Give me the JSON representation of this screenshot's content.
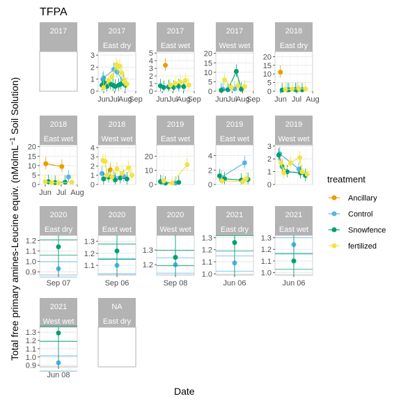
{
  "chart_data": {
    "type": "scatter",
    "title": "TFPA",
    "xlabel": "Date",
    "ylabel": "Total free primary amines-Leucine equiv. (nMol mL^-1 Soil Solution)",
    "ylabel_parts": {
      "main": "Total free primary amines-Leucine equiv. (nMolmL",
      "sup": "−1",
      "tail": " Soil Solution)"
    },
    "legend": {
      "title": "treatment",
      "position": "right",
      "entries": [
        {
          "name": "Ancillary",
          "color": "#E69F00"
        },
        {
          "name": "Control",
          "color": "#56B4E9"
        },
        {
          "name": "Snowfence",
          "color": "#009E73"
        },
        {
          "name": "fertilized",
          "color": "#F0E442"
        }
      ]
    },
    "panels": [
      {
        "year": "2017",
        "site": "",
        "empty": true
      },
      {
        "year": "2017",
        "site": "East dry",
        "ylim": [
          0,
          3.3
        ],
        "yticks": [
          0,
          1,
          2,
          3
        ],
        "xticks": [
          "Jun",
          "Jul",
          "Aug",
          "Sep"
        ],
        "series": [
          {
            "name": "Ancillary",
            "points": []
          },
          {
            "name": "Control",
            "points": [
              [
                0.08,
                1.0
              ],
              [
                0.1,
                1.1
              ],
              [
                0.4,
                1.8
              ],
              [
                0.5,
                1.6
              ],
              [
                0.7,
                0.8
              ]
            ]
          },
          {
            "name": "Snowfence",
            "points": [
              [
                0.05,
                0.5
              ],
              [
                0.12,
                0.7
              ],
              [
                0.2,
                0.4
              ],
              [
                0.3,
                0.6
              ],
              [
                0.38,
                0.5
              ],
              [
                0.45,
                0.4
              ],
              [
                0.55,
                0.5
              ],
              [
                0.62,
                0.6
              ],
              [
                0.75,
                0.5
              ]
            ]
          },
          {
            "name": "fertilized",
            "points": [
              [
                0.1,
                0.3
              ],
              [
                0.25,
                0.9
              ],
              [
                0.35,
                1.2
              ],
              [
                0.48,
                2.2
              ],
              [
                0.52,
                2.0
              ],
              [
                0.58,
                2.1
              ],
              [
                0.65,
                1.5
              ],
              [
                0.72,
                0.8
              ],
              [
                0.8,
                0.6
              ]
            ]
          }
        ]
      },
      {
        "year": "2017",
        "site": "East wet",
        "ylim": [
          0,
          5.2
        ],
        "yticks": [
          0,
          1,
          2,
          3,
          4,
          5
        ],
        "xticks": [
          "Jun",
          "Jul",
          "Aug",
          "Sep"
        ],
        "series": [
          {
            "name": "Ancillary",
            "points": [
              [
                0.2,
                3.4
              ]
            ]
          },
          {
            "name": "Control",
            "points": [
              [
                0.3,
                0.5
              ],
              [
                0.6,
                0.6
              ]
            ]
          },
          {
            "name": "Snowfence",
            "points": [
              [
                0.05,
                0.7
              ],
              [
                0.15,
                0.5
              ],
              [
                0.3,
                0.6
              ],
              [
                0.45,
                0.5
              ],
              [
                0.6,
                0.7
              ],
              [
                0.75,
                0.6
              ]
            ]
          },
          {
            "name": "fertilized",
            "points": [
              [
                0.35,
                0.8
              ],
              [
                0.5,
                1.0
              ],
              [
                0.65,
                1.2
              ],
              [
                0.8,
                1.4
              ],
              [
                0.9,
                0.8
              ]
            ]
          }
        ]
      },
      {
        "year": "2017",
        "site": "West wet",
        "ylim": [
          0,
          21
        ],
        "yticks": [
          0,
          5,
          10,
          15,
          20
        ],
        "xticks": [
          "Jun",
          "Jul",
          "Aug",
          "Sep"
        ],
        "series": [
          {
            "name": "Ancillary",
            "points": []
          },
          {
            "name": "Control",
            "points": [
              [
                0.15,
                1.0
              ],
              [
                0.5,
                1.3
              ]
            ]
          },
          {
            "name": "Snowfence",
            "points": [
              [
                0.1,
                0.5
              ],
              [
                0.3,
                0.8
              ],
              [
                0.55,
                10.5
              ],
              [
                0.7,
                1.0
              ]
            ]
          },
          {
            "name": "fertilized",
            "points": [
              [
                0.2,
                6.0
              ],
              [
                0.4,
                2.0
              ],
              [
                0.6,
                3.0
              ],
              [
                0.8,
                2.5
              ]
            ]
          }
        ]
      },
      {
        "year": "2018",
        "site": "East dry",
        "ylim": [
          0,
          23
        ],
        "yticks": [
          0,
          5,
          10,
          15,
          20
        ],
        "xticks": [
          "Jun",
          "Jul",
          "Aug"
        ],
        "series": [
          {
            "name": "Ancillary",
            "points": [
              [
                0.1,
                11.0
              ]
            ]
          },
          {
            "name": "Control",
            "points": [
              [
                0.3,
                0.8
              ],
              [
                0.6,
                0.7
              ]
            ]
          },
          {
            "name": "Snowfence",
            "points": [
              [
                0.15,
                0.7
              ],
              [
                0.35,
                0.8
              ],
              [
                0.55,
                0.9
              ],
              [
                0.75,
                0.8
              ]
            ]
          },
          {
            "name": "fertilized",
            "points": [
              [
                0.25,
                1.0
              ],
              [
                0.45,
                1.2
              ],
              [
                0.65,
                1.5
              ],
              [
                0.85,
                1.3
              ]
            ]
          }
        ]
      },
      {
        "year": "2018",
        "site": "East wet",
        "ylim": [
          0,
          21
        ],
        "yticks": [
          0,
          5,
          10,
          15,
          20
        ],
        "xticks": [
          "Jun",
          "Jul",
          "Aug"
        ],
        "series": [
          {
            "name": "Ancillary",
            "points": [
              [
                0.12,
                11.0
              ],
              [
                0.6,
                9.5
              ]
            ]
          },
          {
            "name": "Control",
            "points": [
              [
                0.8,
                4.0
              ]
            ]
          },
          {
            "name": "Snowfence",
            "points": [
              [
                0.2,
                1.5
              ],
              [
                0.4,
                1.0
              ],
              [
                0.7,
                1.2
              ]
            ]
          },
          {
            "name": "fertilized",
            "points": [
              [
                0.1,
                1.5
              ],
              [
                0.3,
                1.0
              ],
              [
                0.5,
                0.8
              ],
              [
                0.9,
                1.2
              ]
            ]
          }
        ]
      },
      {
        "year": "2018",
        "site": "West wet",
        "ylim": [
          0,
          4.3
        ],
        "yticks": [
          0,
          1,
          2,
          3,
          4
        ],
        "xticks": [],
        "series": [
          {
            "name": "Ancillary",
            "points": [
              [
                0.3,
                1.6
              ]
            ]
          },
          {
            "name": "Control",
            "points": [
              [
                0.05,
                1.2
              ],
              [
                0.4,
                0.8
              ],
              [
                0.7,
                0.9
              ]
            ]
          },
          {
            "name": "Snowfence",
            "points": [
              [
                0.1,
                0.6
              ],
              [
                0.25,
                0.8
              ],
              [
                0.45,
                0.5
              ],
              [
                0.6,
                0.7
              ],
              [
                0.8,
                0.6
              ]
            ]
          },
          {
            "name": "fertilized",
            "points": [
              [
                0.08,
                2.6
              ],
              [
                0.15,
                2.5
              ],
              [
                0.2,
                1.0
              ],
              [
                0.35,
                0.8
              ],
              [
                0.5,
                1.7
              ],
              [
                0.65,
                1.2
              ],
              [
                0.85,
                1.8
              ],
              [
                0.95,
                1.0
              ]
            ]
          }
        ]
      },
      {
        "year": "2019",
        "site": "East wet",
        "ylim": [
          0,
          28
        ],
        "yticks": [
          0,
          10,
          20
        ],
        "xticks": [],
        "series": [
          {
            "name": "Ancillary",
            "points": []
          },
          {
            "name": "Control",
            "points": [
              [
                0.1,
                1.5
              ],
              [
                0.5,
                1.0
              ]
            ]
          },
          {
            "name": "Snowfence",
            "points": [
              [
                0.05,
                2.0
              ],
              [
                0.2,
                1.0
              ],
              [
                0.6,
                1.5
              ]
            ]
          },
          {
            "name": "fertilized",
            "points": [
              [
                0.15,
                2.5
              ],
              [
                0.4,
                1.0
              ],
              [
                0.85,
                14.0
              ]
            ]
          }
        ]
      },
      {
        "year": "2019",
        "site": "East wet",
        "ylim": [
          0,
          5.5
        ],
        "yticks": [
          0,
          2,
          4
        ],
        "xticks": [],
        "series": [
          {
            "name": "Ancillary",
            "points": []
          },
          {
            "name": "Control",
            "points": [
              [
                0.1,
                1.0
              ],
              [
                0.8,
                3.0
              ]
            ]
          },
          {
            "name": "Snowfence",
            "points": [
              [
                0.05,
                1.2
              ],
              [
                0.2,
                0.8
              ],
              [
                0.7,
                0.6
              ],
              [
                0.9,
                0.7
              ]
            ]
          },
          {
            "name": "fertilized",
            "points": [
              [
                0.12,
                0.5
              ],
              [
                0.75,
                0.4
              ],
              [
                0.85,
                0.8
              ]
            ]
          }
        ]
      },
      {
        "year": "2019",
        "site": "West wet",
        "ylim": [
          0,
          3.1
        ],
        "yticks": [
          0,
          1,
          2,
          3
        ],
        "xticks": [],
        "series": [
          {
            "name": "Ancillary",
            "points": []
          },
          {
            "name": "Control",
            "points": [
              [
                0.08,
                2.4
              ],
              [
                0.65,
                1.2
              ]
            ]
          },
          {
            "name": "Snowfence",
            "points": [
              [
                0.05,
                2.3
              ],
              [
                0.15,
                1.4
              ],
              [
                0.3,
                1.0
              ],
              [
                0.7,
                0.9
              ],
              [
                0.85,
                0.7
              ]
            ]
          },
          {
            "name": "fertilized",
            "points": [
              [
                0.12,
                1.7
              ],
              [
                0.2,
                0.9
              ],
              [
                0.4,
                1.7
              ],
              [
                0.68,
                2.1
              ],
              [
                0.75,
                1.0
              ],
              [
                0.9,
                0.8
              ]
            ]
          }
        ]
      },
      {
        "year": "2020",
        "site": "East dry",
        "ylim": [
          0.87,
          1.25
        ],
        "yticks": [
          0.9,
          1.0,
          1.1,
          1.2
        ],
        "ytick_labels": [
          "0.9",
          "1.0",
          "1.1",
          "1.2"
        ],
        "xticks": [
          "Sep 07"
        ],
        "series": [
          {
            "name": "Control",
            "points": [
              [
                0.5,
                0.93
              ]
            ]
          },
          {
            "name": "Snowfence",
            "points": [
              [
                0.5,
                1.14
              ]
            ]
          }
        ]
      },
      {
        "year": "2020",
        "site": "East wet",
        "ylim": [
          1.02,
          1.35
        ],
        "yticks": [
          1.1,
          1.2,
          1.3
        ],
        "ytick_labels": [
          "1.1",
          "1.2",
          "1.3"
        ],
        "xticks": [
          "Sep 06"
        ],
        "series": [
          {
            "name": "Control",
            "points": [
              [
                0.5,
                1.1
              ]
            ]
          },
          {
            "name": "Snowfence",
            "points": [
              [
                0.5,
                1.22
              ]
            ]
          }
        ]
      },
      {
        "year": "2020",
        "site": "West wet",
        "ylim": [
          1.13,
          1.4
        ],
        "yticks": [
          1.2,
          1.3
        ],
        "ytick_labels": [
          "1.2",
          "1.3"
        ],
        "xticks": [
          "Sep 08"
        ],
        "series": [
          {
            "name": "Control",
            "points": [
              [
                0.5,
                1.2
              ]
            ]
          },
          {
            "name": "Snowfence",
            "points": [
              [
                0.5,
                1.25
              ]
            ]
          }
        ]
      },
      {
        "year": "2021",
        "site": "East dry",
        "ylim": [
          0.99,
          1.32
        ],
        "yticks": [
          1.0,
          1.1,
          1.2,
          1.3
        ],
        "ytick_labels": [
          "1.0",
          "1.1",
          "1.2",
          "1.3"
        ],
        "xticks": [
          "Jun 06"
        ],
        "series": [
          {
            "name": "Control",
            "points": [
              [
                0.5,
                1.09
              ]
            ]
          },
          {
            "name": "Snowfence",
            "points": [
              [
                0.5,
                1.26
              ]
            ]
          }
        ]
      },
      {
        "year": "2021",
        "site": "East wet",
        "ylim": [
          0.98,
          1.32
        ],
        "yticks": [
          1.0,
          1.1,
          1.2,
          1.3
        ],
        "ytick_labels": [
          "1.0",
          "1.1",
          "1.2",
          "1.3"
        ],
        "xticks": [
          "Jun 06"
        ],
        "series": [
          {
            "name": "Control",
            "points": [
              [
                0.5,
                1.24
              ]
            ]
          },
          {
            "name": "Snowfence",
            "points": [
              [
                0.5,
                1.1
              ]
            ]
          }
        ]
      },
      {
        "year": "2021",
        "site": "West wet",
        "ylim": [
          0.88,
          1.36
        ],
        "yticks": [
          0.9,
          1.0,
          1.1,
          1.2,
          1.3
        ],
        "ytick_labels": [
          "0.9",
          "1.0",
          "1.1",
          "1.2",
          "1.3"
        ],
        "xticks": [
          "Jun 08"
        ],
        "series": [
          {
            "name": "Control",
            "points": [
              [
                0.5,
                0.93
              ]
            ]
          },
          {
            "name": "Snowfence",
            "points": [
              [
                0.5,
                1.29
              ]
            ]
          }
        ]
      },
      {
        "year": "NA",
        "site": "East dry",
        "empty": true
      }
    ]
  }
}
